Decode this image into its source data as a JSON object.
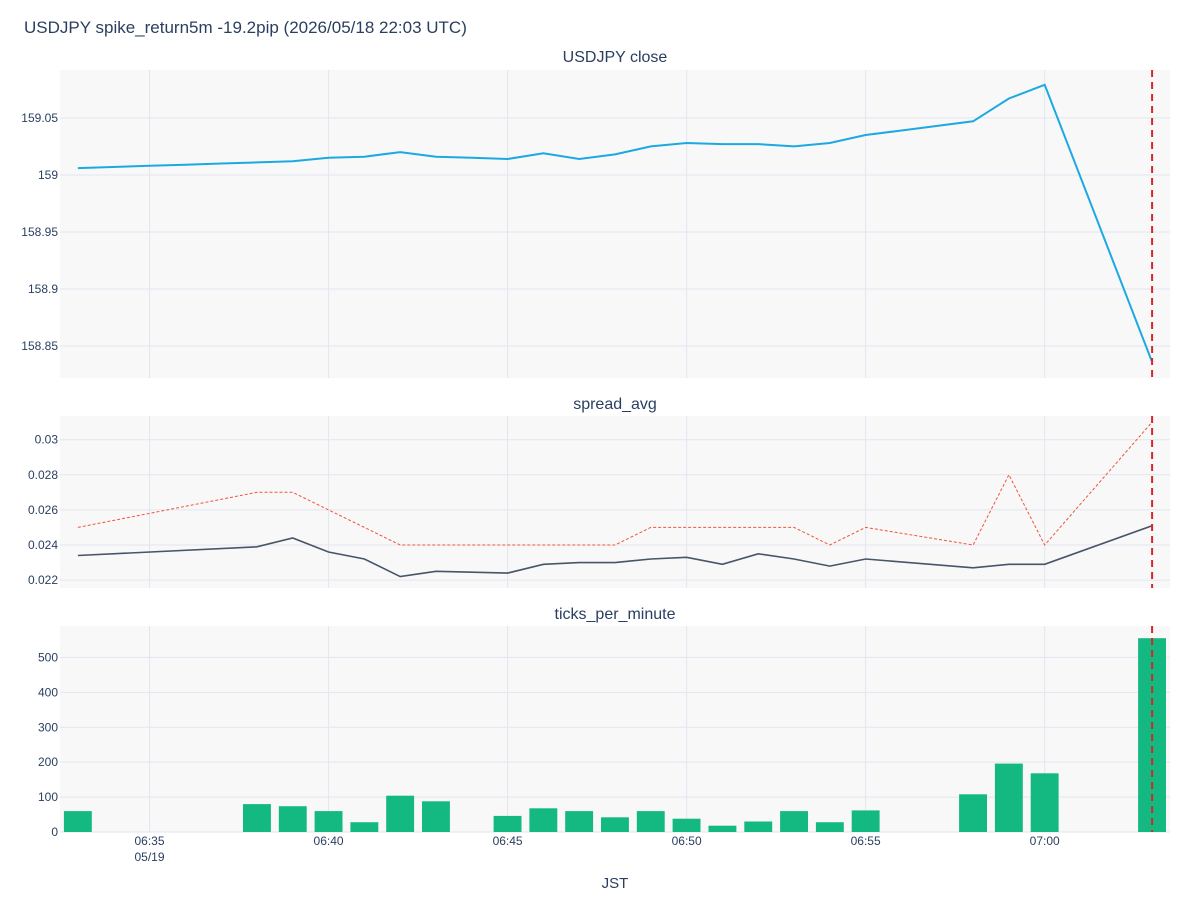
{
  "title": "USDJPY spike_return5m -19.2pip (2026/05/18 22:03 UTC)",
  "x_axis_title": "JST",
  "colors": {
    "plot_bg": "#f8f8f9",
    "grid": "#e2e6ee",
    "close_line": "#1ca9e2",
    "spread_avg_line": "#485468",
    "spread_max_line": "#ef553b",
    "ticks_bar": "#13b981",
    "marker": "#d62728"
  },
  "chart_data": [
    {
      "type": "line",
      "title": "USDJPY close",
      "x": [
        "06:33",
        "06:35",
        "06:36",
        "06:37",
        "06:38",
        "06:39",
        "06:40",
        "06:41",
        "06:42",
        "06:43",
        "06:44",
        "06:45",
        "06:46",
        "06:47",
        "06:48",
        "06:49",
        "06:50",
        "06:51",
        "06:52",
        "06:53",
        "06:54",
        "06:55",
        "06:56",
        "06:57",
        "06:58",
        "06:59",
        "07:00",
        "07:03"
      ],
      "y": [
        159.006,
        159.008,
        159.009,
        159.01,
        159.011,
        159.012,
        159.015,
        159.016,
        159.02,
        159.016,
        159.015,
        159.014,
        159.019,
        159.014,
        159.018,
        159.025,
        159.028,
        159.027,
        159.027,
        159.025,
        159.028,
        159.035,
        159.039,
        159.043,
        159.047,
        159.067,
        159.079,
        158.836
      ],
      "yticks": [
        158.85,
        158.9,
        158.95,
        159,
        159.05
      ],
      "ytick_labels": [
        "158.85",
        "158.9",
        "158.95",
        "159",
        "159.05"
      ]
    },
    {
      "type": "line",
      "title": "spread_avg",
      "x": [
        "06:33",
        "06:38",
        "06:39",
        "06:40",
        "06:41",
        "06:42",
        "06:43",
        "06:45",
        "06:46",
        "06:47",
        "06:48",
        "06:49",
        "06:50",
        "06:51",
        "06:52",
        "06:53",
        "06:54",
        "06:55",
        "06:58",
        "06:59",
        "07:00",
        "07:03"
      ],
      "series": [
        {
          "values": [
            0.0234,
            0.0239,
            0.0244,
            0.0236,
            0.0232,
            0.0222,
            0.0225,
            0.0224,
            0.0229,
            0.023,
            0.023,
            0.0232,
            0.0233,
            0.0229,
            0.0235,
            0.0232,
            0.0228,
            0.0232,
            0.0227,
            0.0229,
            0.0229,
            0.0251
          ]
        },
        {
          "values": [
            0.025,
            0.027,
            0.027,
            0.026,
            0.025,
            0.024,
            0.024,
            0.024,
            0.024,
            0.024,
            0.024,
            0.025,
            0.025,
            0.025,
            0.025,
            0.025,
            0.024,
            0.025,
            0.024,
            0.028,
            0.024,
            0.031
          ]
        }
      ],
      "yticks": [
        0.022,
        0.024,
        0.026,
        0.028,
        0.03
      ],
      "ytick_labels": [
        "0.022",
        "0.024",
        "0.026",
        "0.028",
        "0.03"
      ]
    },
    {
      "type": "bar",
      "title": "ticks_per_minute",
      "x": [
        "06:33",
        "06:38",
        "06:39",
        "06:40",
        "06:41",
        "06:42",
        "06:43",
        "06:45",
        "06:46",
        "06:47",
        "06:48",
        "06:49",
        "06:50",
        "06:51",
        "06:52",
        "06:53",
        "06:54",
        "06:55",
        "06:58",
        "06:59",
        "07:00",
        "07:03"
      ],
      "values": [
        60,
        80,
        74,
        60,
        28,
        104,
        88,
        46,
        68,
        60,
        42,
        60,
        38,
        18,
        30,
        60,
        28,
        62,
        108,
        196,
        168,
        555
      ],
      "yticks": [
        0,
        100,
        200,
        300,
        400,
        500
      ],
      "ytick_labels": [
        "0",
        "100",
        "200",
        "300",
        "400",
        "500"
      ]
    }
  ],
  "x_ticks": [
    {
      "time": "06:35",
      "label": "06:35",
      "sublabel": "05/19"
    },
    {
      "time": "06:40",
      "label": "06:40",
      "sublabel": ""
    },
    {
      "time": "06:45",
      "label": "06:45",
      "sublabel": ""
    },
    {
      "time": "06:50",
      "label": "06:50",
      "sublabel": ""
    },
    {
      "time": "06:55",
      "label": "06:55",
      "sublabel": ""
    },
    {
      "time": "07:00",
      "label": "07:00",
      "sublabel": ""
    }
  ],
  "event_marker_time": "07:03"
}
